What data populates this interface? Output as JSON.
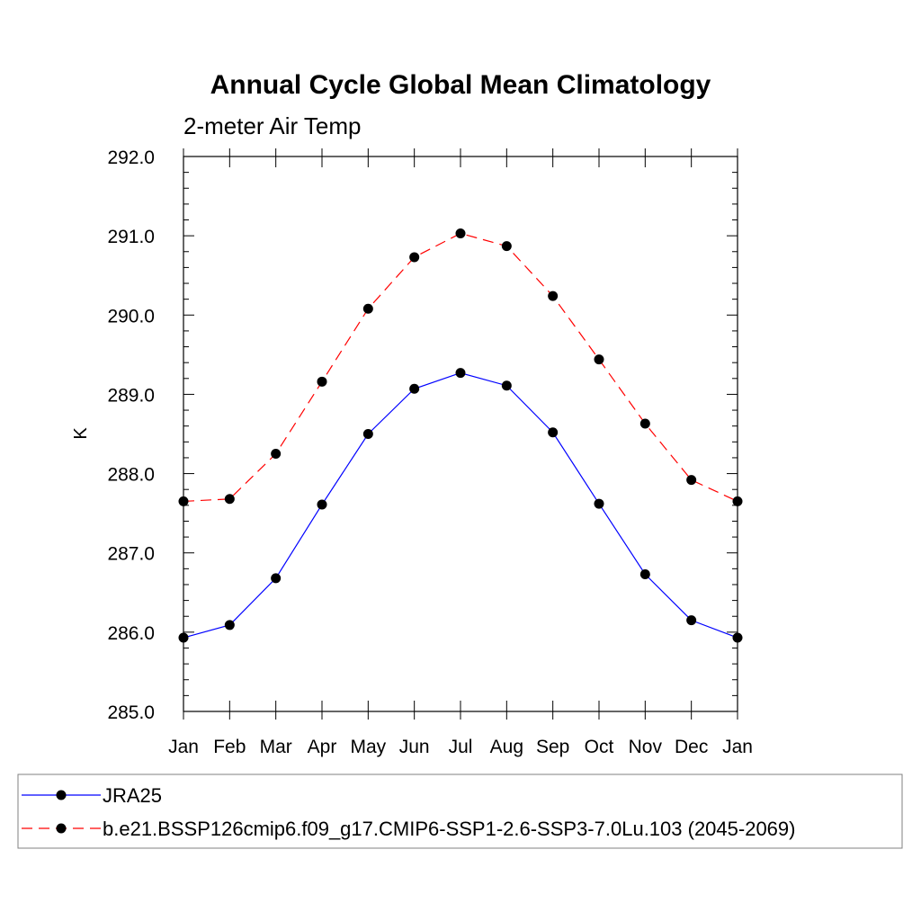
{
  "chart_data": {
    "type": "line",
    "title": "Annual Cycle Global Mean Climatology",
    "subtitle": "2-meter Air Temp",
    "xlabel": "",
    "ylabel": "K",
    "categories": [
      "Jan",
      "Feb",
      "Mar",
      "Apr",
      "May",
      "Jun",
      "Jul",
      "Aug",
      "Sep",
      "Oct",
      "Nov",
      "Dec",
      "Jan"
    ],
    "ylim": [
      285.0,
      292.0
    ],
    "yticks": [
      "285.0",
      "286.0",
      "287.0",
      "288.0",
      "289.0",
      "290.0",
      "291.0",
      "292.0"
    ],
    "grid": false,
    "legend_position": "bottom",
    "series": [
      {
        "name": "JRA25",
        "color": "#0000ff",
        "dash": "solid",
        "marker": "filled-circle",
        "values": [
          285.93,
          286.09,
          286.68,
          287.61,
          288.5,
          289.07,
          289.27,
          289.11,
          288.52,
          287.62,
          286.73,
          286.15,
          285.93
        ]
      },
      {
        "name": "b.e21.BSSP126cmip6.f09_g17.CMIP6-SSP1-2.6-SSP3-7.0Lu.103 (2045-2069)",
        "color": "#ff0000",
        "dash": "dashed",
        "marker": "filled-circle",
        "values": [
          287.65,
          287.68,
          288.25,
          289.16,
          290.08,
          290.73,
          291.03,
          290.87,
          290.24,
          289.44,
          288.63,
          287.92,
          287.65
        ]
      }
    ]
  }
}
